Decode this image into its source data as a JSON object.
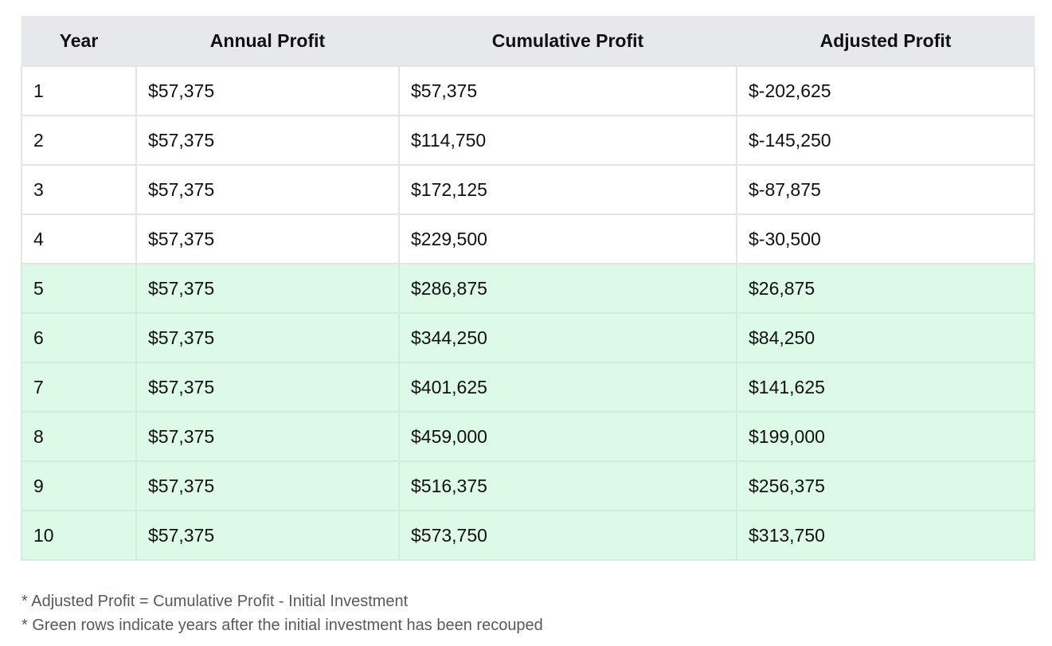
{
  "table": {
    "headers": [
      "Year",
      "Annual Profit",
      "Cumulative Profit",
      "Adjusted Profit"
    ],
    "rows": [
      {
        "year": "1",
        "annual": "$57,375",
        "cumulative": "$57,375",
        "adjusted": "$-202,625",
        "recouped": false
      },
      {
        "year": "2",
        "annual": "$57,375",
        "cumulative": "$114,750",
        "adjusted": "$-145,250",
        "recouped": false
      },
      {
        "year": "3",
        "annual": "$57,375",
        "cumulative": "$172,125",
        "adjusted": "$-87,875",
        "recouped": false
      },
      {
        "year": "4",
        "annual": "$57,375",
        "cumulative": "$229,500",
        "adjusted": "$-30,500",
        "recouped": false
      },
      {
        "year": "5",
        "annual": "$57,375",
        "cumulative": "$286,875",
        "adjusted": "$26,875",
        "recouped": true
      },
      {
        "year": "6",
        "annual": "$57,375",
        "cumulative": "$344,250",
        "adjusted": "$84,250",
        "recouped": true
      },
      {
        "year": "7",
        "annual": "$57,375",
        "cumulative": "$401,625",
        "adjusted": "$141,625",
        "recouped": true
      },
      {
        "year": "8",
        "annual": "$57,375",
        "cumulative": "$459,000",
        "adjusted": "$199,000",
        "recouped": true
      },
      {
        "year": "9",
        "annual": "$57,375",
        "cumulative": "$516,375",
        "adjusted": "$256,375",
        "recouped": true
      },
      {
        "year": "10",
        "annual": "$57,375",
        "cumulative": "$573,750",
        "adjusted": "$313,750",
        "recouped": true
      }
    ]
  },
  "notes": {
    "adjusted_definition": "* Adjusted Profit = Cumulative Profit - Initial Investment",
    "green_rows": "* Green rows indicate years after the initial investment has been recouped"
  },
  "colors": {
    "header_bg": "#e7e8eb",
    "recouped_row_bg": "#dcfae7",
    "border": "#e4e5e8"
  }
}
